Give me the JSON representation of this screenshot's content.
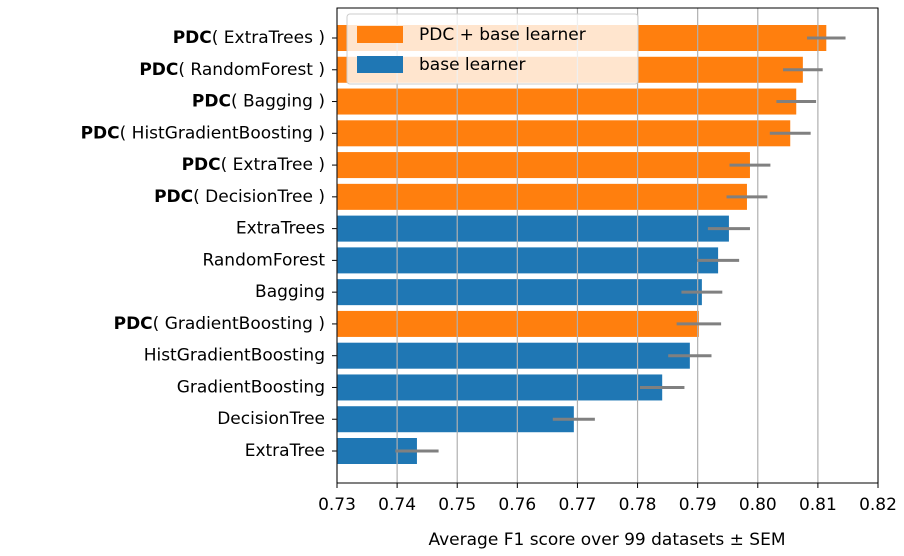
{
  "chart_data": {
    "type": "barh",
    "xlabel": "Average F1 score over 99 datasets ± SEM",
    "categories": [
      "PDC( ExtraTrees )",
      "PDC( RandomForest )",
      "PDC( Bagging )",
      "PDC( HistGradientBoosting )",
      "PDC( ExtraTree )",
      "PDC( DecisionTree )",
      "ExtraTrees",
      "RandomForest",
      "Bagging",
      "PDC( GradientBoosting )",
      "HistGradientBoosting",
      "GradientBoosting",
      "DecisionTree",
      "ExtraTree"
    ],
    "series": [
      {
        "name": "PDC + base learner",
        "color": "#ff7f0e",
        "values": [
          0.8114,
          0.8075,
          0.8064,
          0.8054,
          0.7987,
          0.7982,
          null,
          null,
          null,
          0.7902,
          null,
          null,
          null,
          null
        ],
        "errors": [
          0.0032,
          0.0033,
          0.0033,
          0.0034,
          0.0034,
          0.0034,
          null,
          null,
          null,
          0.0037,
          null,
          null,
          null,
          null
        ]
      },
      {
        "name": "base learner",
        "color": "#1f77b4",
        "values": [
          null,
          null,
          null,
          null,
          null,
          null,
          0.7952,
          0.7934,
          0.7907,
          null,
          0.7887,
          0.7841,
          0.7694,
          0.7433
        ],
        "errors": [
          null,
          null,
          null,
          null,
          null,
          null,
          0.0035,
          0.0035,
          0.0034,
          null,
          0.0036,
          0.0037,
          0.0035,
          0.0036
        ]
      }
    ],
    "error_color": "#808080",
    "xlim": [
      0.73,
      0.82
    ],
    "xticks": [
      0.73,
      0.74,
      0.75,
      0.76,
      0.77,
      0.78,
      0.79,
      {
        "value": 0.8,
        "label": "0.80"
      },
      0.81,
      0.82
    ],
    "grid": true,
    "legend": "upper left"
  }
}
